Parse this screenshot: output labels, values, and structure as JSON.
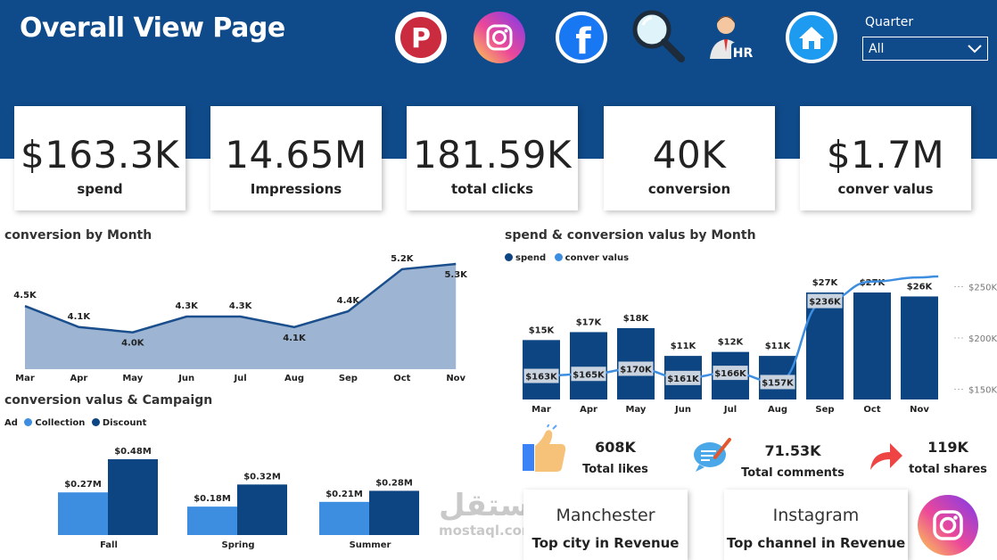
{
  "header": {
    "title": "Overall View Page"
  },
  "icons": [
    "pinterest-icon",
    "instagram-icon",
    "facebook-icon",
    "search-icon",
    "hr-icon",
    "home-icon"
  ],
  "slicer": {
    "label": "Quarter",
    "value": "All"
  },
  "kpis": [
    {
      "value": "$163.3K",
      "label": "spend"
    },
    {
      "value": "14.65M",
      "label": "Impressions"
    },
    {
      "value": "181.59K",
      "label": "total clicks"
    },
    {
      "value": "40K",
      "label": "conversion"
    },
    {
      "value": "$1.7M",
      "label": "conver valus"
    }
  ],
  "colors": {
    "header": "#0f4a8a",
    "dark_series": "#0d4583",
    "light_series": "#3d8ee0",
    "area_fill": "#9db5d3",
    "area_line": "#1a4e8c"
  },
  "chart_data": [
    {
      "type": "area",
      "title": "conversion by Month",
      "categories": [
        "Mar",
        "Apr",
        "May",
        "Jun",
        "Jul",
        "Aug",
        "Sep",
        "Oct",
        "Nov"
      ],
      "values": [
        4.5,
        4.1,
        4.0,
        4.3,
        4.3,
        4.1,
        4.4,
        5.2,
        5.3
      ],
      "data_labels": [
        "4.5K",
        "4.1K",
        "4.0K",
        "4.3K",
        "4.3K",
        "4.1K",
        "4.4K",
        "5.2K",
        "5.3K"
      ]
    },
    {
      "type": "bar",
      "title": "spend & conversion valus by Month",
      "categories": [
        "Mar",
        "Apr",
        "May",
        "Jun",
        "Jul",
        "Aug",
        "Sep",
        "Oct",
        "Nov"
      ],
      "series": [
        {
          "name": "spend",
          "values": [
            15,
            17,
            18,
            11,
            12,
            11,
            27,
            27,
            26
          ],
          "labels": [
            "$15K",
            "$17K",
            "$18K",
            "$11K",
            "$12K",
            "$11K",
            "$27K",
            "$27K",
            "$26K"
          ]
        },
        {
          "name": "conver valus",
          "type": "line",
          "values": [
            163,
            165,
            170,
            161,
            166,
            157,
            236,
            255,
            259
          ],
          "labels": [
            "$163K",
            "$165K",
            "$170K",
            "$161K",
            "$166K",
            "$157K",
            "$236K",
            "",
            ""
          ]
        }
      ],
      "y2_ticks": [
        "$150K",
        "$200K",
        "$250K"
      ],
      "y2_range": [
        140,
        260
      ]
    },
    {
      "type": "bar",
      "title": "conversion valus & Campaign",
      "legend_title": "Ad",
      "categories": [
        "Fall",
        "Spring",
        "Summer"
      ],
      "series": [
        {
          "name": "Collection",
          "values": [
            0.27,
            0.18,
            0.21
          ],
          "labels": [
            "$0.27M",
            "$0.18M",
            "$0.21M"
          ]
        },
        {
          "name": "Discount",
          "values": [
            0.48,
            0.32,
            0.28
          ],
          "labels": [
            "$0.48M",
            "$0.32M",
            "$0.28M"
          ]
        }
      ],
      "ylim": [
        0,
        0.48
      ]
    }
  ],
  "social": [
    {
      "value": "608K",
      "label": "Total likes"
    },
    {
      "value": "71.53K",
      "label": "Total comments"
    },
    {
      "value": "119K",
      "label": "total shares"
    }
  ],
  "cards": [
    {
      "value": "Manchester",
      "label": "Top city in Revenue"
    },
    {
      "value": "Instagram",
      "label": "Top channel in Revenue"
    }
  ],
  "watermark": {
    "arabic": "مستقل",
    "latin": "mostaql.com"
  }
}
